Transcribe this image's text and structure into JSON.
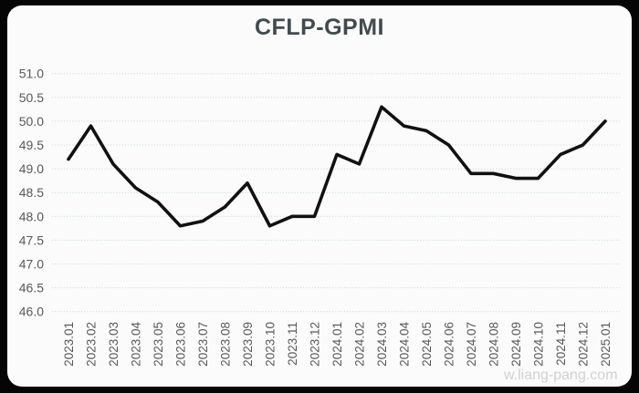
{
  "page": {
    "background_color": "#050505",
    "card_color": "#fbfbfb"
  },
  "watermark": {
    "text": "w.liang-pang.com"
  },
  "chart_data": {
    "type": "line",
    "title": "CFLP-GPMI",
    "categories": [
      "2023.01",
      "2023.02",
      "2023.03",
      "2023.04",
      "2023.05",
      "2023.06",
      "2023.07",
      "2023.08",
      "2023.09",
      "2023.10",
      "2023.11",
      "2023.12",
      "2024.01",
      "2024.02",
      "2024.03",
      "2024.04",
      "2024.05",
      "2024.06",
      "2024.07",
      "2024.08",
      "2024.09",
      "2024.10",
      "2024.11",
      "2024.12",
      "2025.01"
    ],
    "series": [
      {
        "name": "CFLP-GPMI",
        "values": [
          49.2,
          49.9,
          49.1,
          48.6,
          48.3,
          47.8,
          47.9,
          48.2,
          48.7,
          47.8,
          48.0,
          48.0,
          49.3,
          49.1,
          50.3,
          49.9,
          49.8,
          49.5,
          48.9,
          48.9,
          48.8,
          48.8,
          49.3,
          49.5,
          50.0
        ]
      }
    ],
    "y_ticks": [
      "51.0",
      "50.5",
      "50.0",
      "49.5",
      "49.0",
      "48.5",
      "48.0",
      "47.5",
      "47.0",
      "46.5",
      "46.0"
    ],
    "ylim": [
      46.0,
      51.0
    ],
    "xlabel": "",
    "ylabel": "",
    "legend": "none",
    "grid": "horizontal-dotted",
    "line_color": "#111111",
    "grid_color": "#bcd4da",
    "label_color": "#595959",
    "title_color": "#414b4e"
  }
}
